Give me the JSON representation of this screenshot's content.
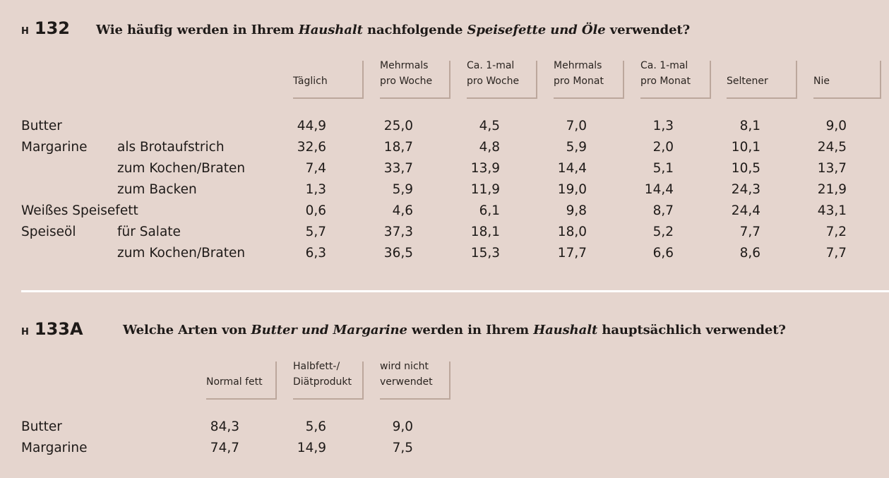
{
  "h132": {
    "prefix": "H",
    "number": "132",
    "question": [
      "Wie häufig werden in Ihrem ",
      "Haushalt",
      " nachfolgende ",
      "Speisefette und Öle",
      " verwendet?"
    ],
    "columns": [
      [
        "Täglich"
      ],
      [
        "Mehrmals",
        "pro Woche"
      ],
      [
        "Ca. 1-mal",
        "pro Woche"
      ],
      [
        "Mehrmals",
        "pro Monat"
      ],
      [
        "Ca. 1-mal",
        "pro Monat"
      ],
      [
        "Seltener"
      ],
      [
        "Nie"
      ]
    ],
    "rows": [
      {
        "label": "Butter",
        "sub": "",
        "values": [
          "44,9",
          "25,0",
          "4,5",
          "7,0",
          "1,3",
          "8,1",
          "9,0"
        ]
      },
      {
        "label": "Margarine",
        "sub": "als Brotaufstrich",
        "values": [
          "32,6",
          "18,7",
          "4,8",
          "5,9",
          "2,0",
          "10,1",
          "24,5"
        ]
      },
      {
        "label": "",
        "sub": "zum Kochen/Braten",
        "values": [
          "7,4",
          "33,7",
          "13,9",
          "14,4",
          "5,1",
          "10,5",
          "13,7"
        ]
      },
      {
        "label": "",
        "sub": "zum Backen",
        "values": [
          "1,3",
          "5,9",
          "11,9",
          "19,0",
          "14,4",
          "24,3",
          "21,9"
        ]
      },
      {
        "label": "Weißes Speisefett",
        "sub": "",
        "values": [
          "0,6",
          "4,6",
          "6,1",
          "9,8",
          "8,7",
          "24,4",
          "43,1"
        ]
      },
      {
        "label": "Speiseöl",
        "sub": "für Salate",
        "values": [
          "5,7",
          "37,3",
          "18,1",
          "18,0",
          "5,2",
          "7,7",
          "7,2"
        ]
      },
      {
        "label": "",
        "sub": "zum Kochen/Braten",
        "values": [
          "6,3",
          "36,5",
          "15,3",
          "17,7",
          "6,6",
          "8,6",
          "7,7"
        ]
      }
    ]
  },
  "h133a": {
    "prefix": "H",
    "number": "133A",
    "question": [
      "Welche Arten von ",
      "Butter und Margarine",
      " werden in Ihrem ",
      "Haushalt",
      " hauptsächlich verwendet?"
    ],
    "columns": [
      [
        "Normal fett"
      ],
      [
        "Halbfett-/",
        "Diätprodukt"
      ],
      [
        "wird nicht",
        "verwendet"
      ]
    ],
    "rows": [
      {
        "label": "Butter",
        "values": [
          "84,3",
          "5,6",
          "9,0"
        ]
      },
      {
        "label": "Margarine",
        "values": [
          "74,7",
          "14,9",
          "7,5"
        ]
      }
    ]
  }
}
